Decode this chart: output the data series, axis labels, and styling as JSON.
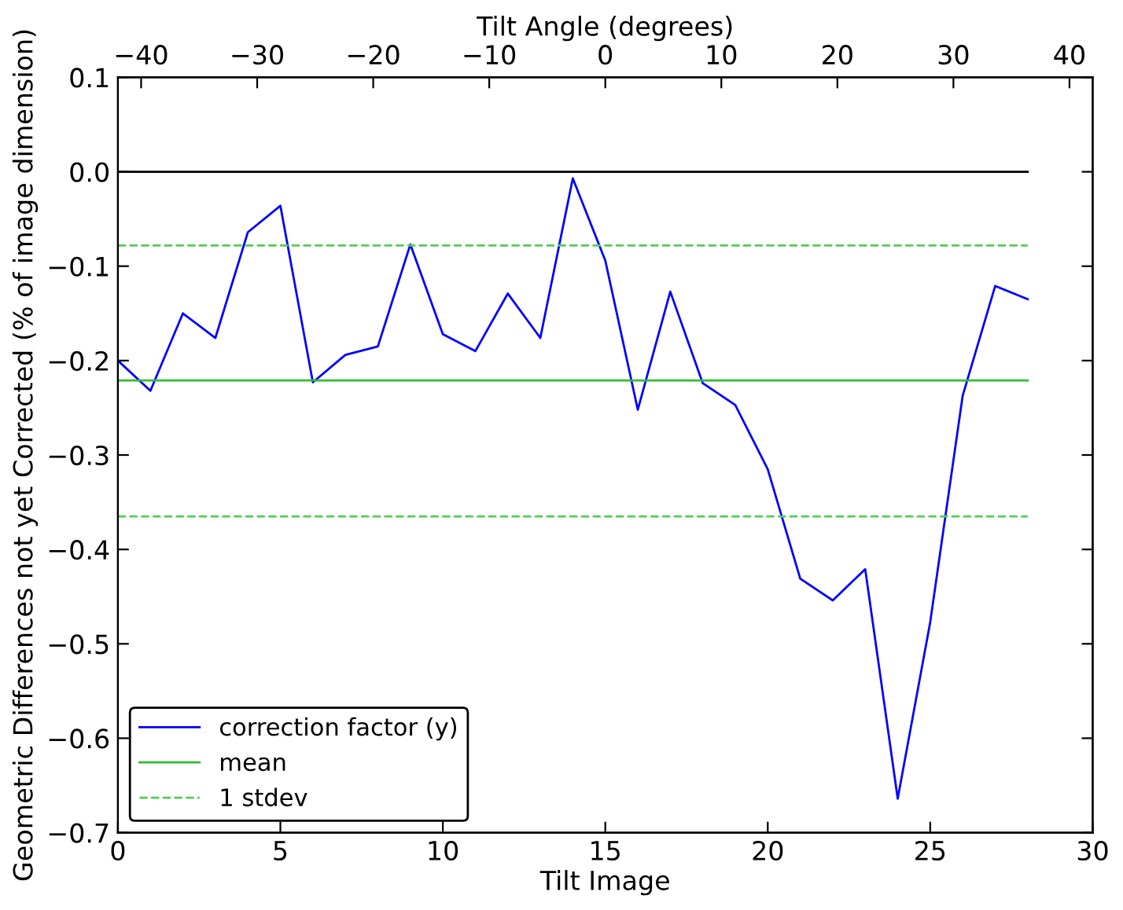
{
  "chart_data": {
    "type": "line",
    "xlabel": "Tilt Image",
    "ylabel": "Geometric Differences not yet Corrected (% of image dimension)",
    "x2label": "Tilt Angle (degrees)",
    "x": [
      0,
      1,
      2,
      3,
      4,
      5,
      6,
      7,
      8,
      9,
      10,
      11,
      12,
      13,
      14,
      15,
      16,
      17,
      18,
      19,
      20,
      21,
      22,
      23,
      24,
      25,
      26,
      27,
      28
    ],
    "series": [
      {
        "name": "correction factor (y)",
        "color": "#0000ff",
        "values": [
          -0.2,
          -0.232,
          -0.15,
          -0.176,
          -0.064,
          -0.036,
          -0.223,
          -0.194,
          -0.185,
          -0.077,
          -0.172,
          -0.19,
          -0.129,
          -0.176,
          -0.007,
          -0.094,
          -0.252,
          -0.127,
          -0.224,
          -0.247,
          -0.315,
          -0.431,
          -0.454,
          -0.421,
          -0.664,
          -0.477,
          -0.237,
          -0.121,
          -0.135
        ]
      }
    ],
    "ref_lines": [
      {
        "axis": "y",
        "value": 0.0,
        "color": "#000000",
        "line_style": "solid"
      },
      {
        "axis": "y",
        "value": -0.221,
        "label": "mean",
        "color": "#33bb33",
        "line_style": "solid"
      },
      {
        "axis": "y",
        "value": -0.078,
        "label": "1 stdev",
        "color": "#55cc55",
        "line_style": "dashed"
      },
      {
        "axis": "y",
        "value": -0.365,
        "color": "#55cc55",
        "line_style": "dashed"
      }
    ],
    "xlim": [
      0,
      30
    ],
    "xticks": [
      0,
      5,
      10,
      15,
      20,
      25,
      30
    ],
    "ylim": [
      -0.7,
      0.1
    ],
    "yticks": [
      {
        "value": -0.7,
        "label": "−0.7"
      },
      {
        "value": -0.6,
        "label": "−0.6"
      },
      {
        "value": -0.5,
        "label": "−0.5"
      },
      {
        "value": -0.4,
        "label": "−0.4"
      },
      {
        "value": -0.3,
        "label": "−0.3"
      },
      {
        "value": -0.2,
        "label": "−0.2"
      },
      {
        "value": -0.1,
        "label": "−0.1"
      },
      {
        "value": 0.0,
        "label": "0.0"
      },
      {
        "value": 0.1,
        "label": "0.1"
      }
    ],
    "x2lim": [
      -42,
      42
    ],
    "x2ticks": [
      {
        "value": -40,
        "label": "−40"
      },
      {
        "value": -30,
        "label": "−30"
      },
      {
        "value": -20,
        "label": "−20"
      },
      {
        "value": -10,
        "label": "−10"
      },
      0,
      10,
      20,
      30,
      40
    ],
    "grid": false,
    "legend": "bottom left",
    "marker": "none",
    "line_style": "solid"
  }
}
